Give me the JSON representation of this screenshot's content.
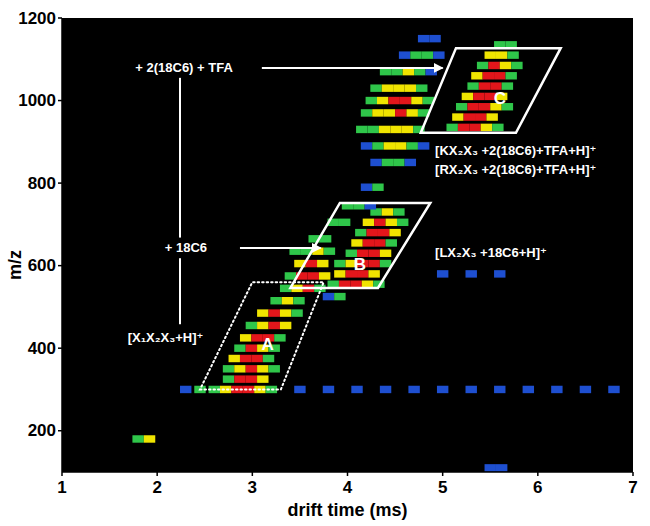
{
  "chart_data": {
    "type": "heatmap",
    "xlabel": "drift time (ms)",
    "ylabel": "m/z",
    "xlim": [
      1,
      7
    ],
    "ylim": [
      100,
      1200
    ],
    "xticks": [
      1,
      2,
      3,
      4,
      5,
      6,
      7
    ],
    "yticks": [
      200,
      400,
      600,
      800,
      1000,
      1200
    ],
    "zlim": [
      1,
      4
    ],
    "cells": [
      [
        1.8,
        180,
        2
      ],
      [
        1.92,
        180,
        3
      ],
      [
        2.3,
        300,
        1
      ],
      [
        2.45,
        300,
        2
      ],
      [
        2.6,
        300,
        2
      ],
      [
        2.72,
        300,
        3
      ],
      [
        2.84,
        300,
        4
      ],
      [
        2.96,
        300,
        4
      ],
      [
        3.08,
        300,
        3
      ],
      [
        3.2,
        300,
        2
      ],
      [
        3.5,
        300,
        1
      ],
      [
        3.8,
        300,
        1
      ],
      [
        4.1,
        300,
        1
      ],
      [
        4.4,
        300,
        1
      ],
      [
        4.7,
        300,
        1
      ],
      [
        5.0,
        300,
        1
      ],
      [
        5.3,
        300,
        1
      ],
      [
        5.6,
        300,
        1
      ],
      [
        5.9,
        300,
        1
      ],
      [
        6.2,
        300,
        1
      ],
      [
        6.5,
        300,
        1
      ],
      [
        6.8,
        300,
        1
      ],
      [
        2.75,
        325,
        2
      ],
      [
        2.87,
        325,
        4
      ],
      [
        2.99,
        325,
        4
      ],
      [
        3.11,
        325,
        3
      ],
      [
        2.75,
        350,
        2
      ],
      [
        2.87,
        350,
        3
      ],
      [
        2.99,
        350,
        4
      ],
      [
        3.11,
        350,
        3
      ],
      [
        3.23,
        350,
        2
      ],
      [
        2.81,
        375,
        3
      ],
      [
        2.93,
        375,
        4
      ],
      [
        3.05,
        375,
        4
      ],
      [
        3.17,
        375,
        2
      ],
      [
        2.87,
        400,
        2
      ],
      [
        2.99,
        400,
        4
      ],
      [
        3.11,
        400,
        3
      ],
      [
        3.23,
        400,
        2
      ],
      [
        2.93,
        425,
        3
      ],
      [
        3.05,
        425,
        4
      ],
      [
        3.17,
        425,
        4
      ],
      [
        3.29,
        425,
        2
      ],
      [
        2.99,
        455,
        2
      ],
      [
        3.11,
        455,
        3
      ],
      [
        3.23,
        455,
        4
      ],
      [
        3.35,
        455,
        3
      ],
      [
        3.11,
        485,
        3
      ],
      [
        3.23,
        485,
        4
      ],
      [
        3.35,
        485,
        3
      ],
      [
        3.47,
        485,
        2
      ],
      [
        3.25,
        515,
        2
      ],
      [
        3.37,
        515,
        3
      ],
      [
        3.49,
        515,
        2
      ],
      [
        3.35,
        545,
        2
      ],
      [
        3.47,
        545,
        3
      ],
      [
        3.59,
        545,
        4
      ],
      [
        3.71,
        545,
        2
      ],
      [
        3.4,
        575,
        2
      ],
      [
        3.52,
        575,
        4
      ],
      [
        3.64,
        575,
        4
      ],
      [
        3.76,
        575,
        3
      ],
      [
        3.5,
        605,
        3
      ],
      [
        3.62,
        605,
        4
      ],
      [
        3.74,
        605,
        3
      ],
      [
        3.45,
        635,
        2
      ],
      [
        3.57,
        635,
        2
      ],
      [
        3.69,
        635,
        3
      ],
      [
        3.81,
        635,
        2
      ],
      [
        3.65,
        665,
        2
      ],
      [
        3.77,
        665,
        2
      ],
      [
        3.8,
        525,
        1
      ],
      [
        3.92,
        525,
        2
      ],
      [
        3.85,
        555,
        2
      ],
      [
        3.97,
        555,
        4
      ],
      [
        4.09,
        555,
        4
      ],
      [
        4.21,
        555,
        3
      ],
      [
        4.33,
        555,
        2
      ],
      [
        3.92,
        580,
        3
      ],
      [
        4.04,
        580,
        4
      ],
      [
        4.16,
        580,
        4
      ],
      [
        4.28,
        580,
        3
      ],
      [
        3.92,
        605,
        2
      ],
      [
        4.04,
        605,
        3
      ],
      [
        4.16,
        605,
        4
      ],
      [
        4.28,
        605,
        4
      ],
      [
        4.4,
        605,
        2
      ],
      [
        4.04,
        630,
        2
      ],
      [
        4.16,
        630,
        4
      ],
      [
        4.28,
        630,
        4
      ],
      [
        4.4,
        630,
        3
      ],
      [
        4.1,
        655,
        3
      ],
      [
        4.22,
        655,
        4
      ],
      [
        4.34,
        655,
        4
      ],
      [
        4.46,
        655,
        2
      ],
      [
        4.14,
        680,
        2
      ],
      [
        4.26,
        680,
        4
      ],
      [
        4.38,
        680,
        4
      ],
      [
        4.5,
        680,
        3
      ],
      [
        4.22,
        705,
        3
      ],
      [
        4.34,
        705,
        4
      ],
      [
        4.46,
        705,
        3
      ],
      [
        4.58,
        705,
        2
      ],
      [
        4.3,
        730,
        2
      ],
      [
        4.42,
        730,
        3
      ],
      [
        4.54,
        730,
        2
      ],
      [
        3.85,
        705,
        2
      ],
      [
        3.97,
        705,
        2
      ],
      [
        4.0,
        745,
        2
      ],
      [
        4.12,
        745,
        2
      ],
      [
        4.24,
        745,
        1
      ],
      [
        4.2,
        790,
        1
      ],
      [
        4.32,
        790,
        2
      ],
      [
        4.3,
        850,
        1
      ],
      [
        4.42,
        850,
        2
      ],
      [
        4.54,
        850,
        2
      ],
      [
        4.66,
        850,
        1
      ],
      [
        4.2,
        890,
        1
      ],
      [
        4.32,
        890,
        2
      ],
      [
        4.44,
        890,
        3
      ],
      [
        4.56,
        890,
        3
      ],
      [
        4.68,
        890,
        2
      ],
      [
        4.8,
        890,
        1
      ],
      [
        4.15,
        930,
        2
      ],
      [
        4.27,
        930,
        2
      ],
      [
        4.39,
        930,
        3
      ],
      [
        4.51,
        930,
        3
      ],
      [
        4.63,
        930,
        3
      ],
      [
        4.75,
        930,
        2
      ],
      [
        4.2,
        970,
        2
      ],
      [
        4.32,
        970,
        3
      ],
      [
        4.44,
        970,
        3
      ],
      [
        4.56,
        970,
        4
      ],
      [
        4.68,
        970,
        3
      ],
      [
        4.8,
        970,
        2
      ],
      [
        4.25,
        1000,
        2
      ],
      [
        4.37,
        1000,
        3
      ],
      [
        4.49,
        1000,
        4
      ],
      [
        4.61,
        1000,
        4
      ],
      [
        4.73,
        1000,
        3
      ],
      [
        4.85,
        1000,
        2
      ],
      [
        4.3,
        1030,
        2
      ],
      [
        4.42,
        1030,
        3
      ],
      [
        4.54,
        1030,
        3
      ],
      [
        4.66,
        1030,
        3
      ],
      [
        4.78,
        1030,
        2
      ],
      [
        4.4,
        1070,
        2
      ],
      [
        4.52,
        1070,
        2
      ],
      [
        4.64,
        1070,
        3
      ],
      [
        4.76,
        1070,
        2
      ],
      [
        4.88,
        1070,
        1
      ],
      [
        4.6,
        1110,
        1
      ],
      [
        4.72,
        1110,
        2
      ],
      [
        4.84,
        1110,
        2
      ],
      [
        4.96,
        1110,
        1
      ],
      [
        4.8,
        1150,
        1
      ],
      [
        4.92,
        1150,
        1
      ],
      [
        5.1,
        935,
        2
      ],
      [
        5.22,
        935,
        4
      ],
      [
        5.34,
        935,
        4
      ],
      [
        5.46,
        935,
        3
      ],
      [
        5.58,
        935,
        2
      ],
      [
        5.16,
        960,
        3
      ],
      [
        5.28,
        960,
        4
      ],
      [
        5.4,
        960,
        4
      ],
      [
        5.52,
        960,
        3
      ],
      [
        5.2,
        985,
        2
      ],
      [
        5.32,
        985,
        4
      ],
      [
        5.44,
        985,
        4
      ],
      [
        5.56,
        985,
        3
      ],
      [
        5.68,
        985,
        2
      ],
      [
        5.26,
        1010,
        3
      ],
      [
        5.38,
        1010,
        4
      ],
      [
        5.5,
        1010,
        4
      ],
      [
        5.62,
        1010,
        3
      ],
      [
        5.32,
        1035,
        2
      ],
      [
        5.44,
        1035,
        4
      ],
      [
        5.56,
        1035,
        4
      ],
      [
        5.68,
        1035,
        2
      ],
      [
        5.36,
        1060,
        3
      ],
      [
        5.48,
        1060,
        4
      ],
      [
        5.6,
        1060,
        4
      ],
      [
        5.72,
        1060,
        2
      ],
      [
        5.42,
        1085,
        2
      ],
      [
        5.54,
        1085,
        4
      ],
      [
        5.66,
        1085,
        3
      ],
      [
        5.78,
        1085,
        2
      ],
      [
        5.5,
        1110,
        3
      ],
      [
        5.62,
        1110,
        3
      ],
      [
        5.74,
        1110,
        2
      ],
      [
        5.6,
        1135,
        2
      ],
      [
        5.72,
        1135,
        2
      ],
      [
        5.0,
        580,
        1
      ],
      [
        5.3,
        580,
        1
      ],
      [
        5.6,
        580,
        1
      ],
      [
        5.5,
        110,
        1
      ],
      [
        5.62,
        110,
        1
      ]
    ],
    "regions": [
      {
        "label": "A",
        "line_style": "dotted",
        "corners": [
          [
            2.45,
            300
          ],
          [
            3.3,
            300
          ],
          [
            3.75,
            560
          ],
          [
            3.0,
            560
          ]
        ],
        "label_pos": [
          3.16,
          408
        ]
      },
      {
        "label": "B",
        "line_style": "solid",
        "corners": [
          [
            3.4,
            546
          ],
          [
            4.32,
            546
          ],
          [
            4.87,
            752
          ],
          [
            3.92,
            752
          ]
        ],
        "label_pos": [
          4.13,
          602
        ]
      },
      {
        "label": "C",
        "line_style": "solid",
        "corners": [
          [
            4.77,
            922
          ],
          [
            5.77,
            922
          ],
          [
            6.24,
            1127
          ],
          [
            5.14,
            1127
          ]
        ],
        "label_pos": [
          5.6,
          1006
        ]
      }
    ],
    "annotations": [
      {
        "text": "+ 2(18C6) + TFA",
        "x": 1.77,
        "y": 1079
      },
      {
        "text": "+ 18C6",
        "x": 2.08,
        "y": 643
      },
      {
        "text": "[X₁X₂X₃+H]⁺",
        "x": 1.69,
        "y": 427
      },
      {
        "text": "[KX₂X₃ +2(18C6)+TFA+H]⁺",
        "x": 4.92,
        "y": 880
      },
      {
        "text": "[RX₂X₃ +2(18C6)+TFA+H]⁺",
        "x": 4.92,
        "y": 832
      },
      {
        "text": "[LX₂X₃ +18C6+H]⁺",
        "x": 4.92,
        "y": 633
      }
    ],
    "arrows": [
      {
        "from": [
          3.1,
          1079
        ],
        "to": [
          5.0,
          1079
        ]
      },
      {
        "from": [
          2.87,
          643
        ],
        "to": [
          3.72,
          643
        ]
      }
    ],
    "connectors": [
      {
        "from": [
          2.24,
          1055
        ],
        "to": [
          2.24,
          668
        ]
      },
      {
        "from": [
          2.24,
          618
        ],
        "to": [
          2.24,
          458
        ]
      }
    ]
  }
}
